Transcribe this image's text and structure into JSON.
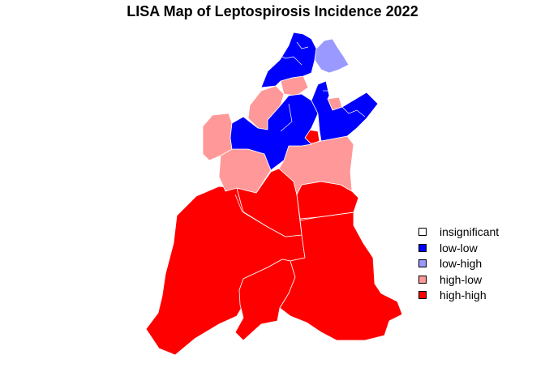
{
  "title": "LISA Map of Leptospirosis Incidence 2022",
  "categories": {
    "insignificant": "#ffffff",
    "low-low": "#0000ff",
    "low-high": "#9999ff",
    "high-low": "#ff9999",
    "high-high": "#ff0000"
  },
  "legend": [
    {
      "label": "insignificant",
      "color": "#ffffff"
    },
    {
      "label": "low-low",
      "color": "#0000ff"
    },
    {
      "label": "low-high",
      "color": "#9999ff"
    },
    {
      "label": "high-low",
      "color": "#ff9999"
    },
    {
      "label": "high-high",
      "color": "#ff0000"
    }
  ],
  "regions": [
    {
      "id": "south-west",
      "class": "high-high"
    },
    {
      "id": "south-centre",
      "class": "high-high"
    },
    {
      "id": "south-east",
      "class": "high-high"
    },
    {
      "id": "centre-south",
      "class": "high-high"
    },
    {
      "id": "east-mid",
      "class": "high-high"
    },
    {
      "id": "centre-small",
      "class": "high-high"
    },
    {
      "id": "west-mid",
      "class": "high-low"
    },
    {
      "id": "west-upper",
      "class": "high-low"
    },
    {
      "id": "east-upper",
      "class": "high-low"
    },
    {
      "id": "north-mid",
      "class": "high-low"
    },
    {
      "id": "north-west-upper",
      "class": "high-low"
    },
    {
      "id": "north-east-small",
      "class": "high-low"
    },
    {
      "id": "centre-block",
      "class": "low-low"
    },
    {
      "id": "north-block",
      "class": "low-low"
    },
    {
      "id": "east-block",
      "class": "low-low"
    },
    {
      "id": "north-east",
      "class": "low-high"
    }
  ]
}
